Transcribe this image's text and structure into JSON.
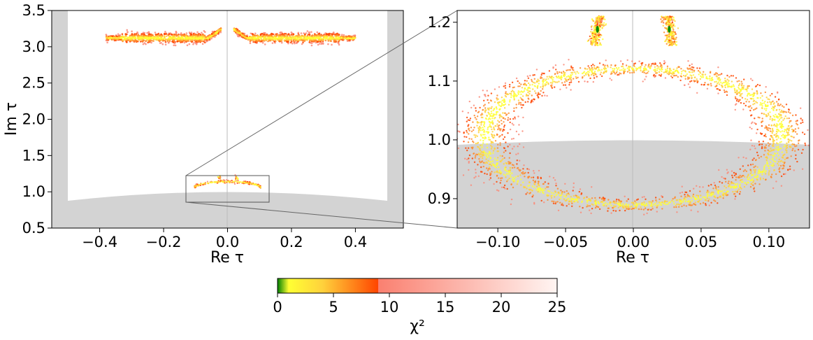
{
  "chart_data": [
    {
      "type": "scatter",
      "panel": "left",
      "xlabel": "Re τ",
      "ylabel": "Im τ",
      "xlim": [
        -0.55,
        0.55
      ],
      "ylim": [
        0.5,
        3.5
      ],
      "xticks": [
        -0.4,
        -0.2,
        0.0,
        0.2,
        0.4
      ],
      "xtick_labels": [
        "−0.4",
        "−0.2",
        "0.0",
        "0.2",
        "0.4"
      ],
      "yticks": [
        0.5,
        1.0,
        1.5,
        2.0,
        2.5,
        3.0,
        3.5
      ],
      "ytick_labels": [
        "0.5",
        "1.0",
        "1.5",
        "2.0",
        "2.5",
        "3.0",
        "3.5"
      ],
      "regions": [
        {
          "x_from": -0.55,
          "x_to": -0.5,
          "y_from": 0.5,
          "y_to": 3.5
        },
        {
          "x_from": 0.5,
          "x_to": 0.55,
          "y_from": 0.5,
          "y_to": 3.5
        },
        {
          "below_curve": "|τ| = 1",
          "x_from": -0.5,
          "x_to": 0.5
        }
      ],
      "vertical_line_x": 0.0,
      "inset_box": {
        "x": [
          -0.13,
          0.13
        ],
        "y": [
          0.85,
          1.22
        ]
      },
      "clusters": [
        {
          "x_from": -0.38,
          "x_to": -0.02,
          "y_center": 3.12,
          "y_spread": 0.07
        },
        {
          "x_from": 0.02,
          "x_to": 0.4,
          "y_center": 3.12,
          "y_spread": 0.07
        },
        {
          "x_from": -0.11,
          "x_to": 0.11,
          "shape": "ellipse",
          "y_center": 1.05
        }
      ]
    },
    {
      "type": "scatter",
      "panel": "right",
      "xlabel": "Re τ",
      "ylabel": "",
      "xlim": [
        -0.13,
        0.13
      ],
      "ylim": [
        0.85,
        1.22
      ],
      "xticks": [
        -0.1,
        -0.05,
        0.0,
        0.05,
        0.1
      ],
      "xtick_labels": [
        "−0.10",
        "−0.05",
        "0.00",
        "0.05",
        "0.10"
      ],
      "yticks": [
        0.9,
        1.0,
        1.1,
        1.2
      ],
      "ytick_labels": [
        "0.9",
        "1.0",
        "1.1",
        "1.2"
      ],
      "regions": [
        {
          "below_curve": "|τ| = 1"
        }
      ],
      "vertical_line_x": 0.0,
      "ellipse": {
        "center_x": 0.0,
        "center_y": 1.005,
        "radius_x": 0.11,
        "radius_y": 0.116
      },
      "best_fit_points": [
        {
          "x": -0.0265,
          "y": 1.188
        },
        {
          "x": 0.0265,
          "y": 1.188
        }
      ]
    }
  ],
  "colorbar": {
    "label": "χ²",
    "range": [
      0,
      25
    ],
    "ticks": [
      0,
      5,
      10,
      15,
      20,
      25
    ],
    "tick_labels": [
      "0",
      "5",
      "10",
      "15",
      "20",
      "25"
    ],
    "stops": [
      {
        "value": 0,
        "color": "#008000"
      },
      {
        "value": 1,
        "color": "#ffff33"
      },
      {
        "value": 4,
        "color": "#ffd23c"
      },
      {
        "value": 9,
        "color": "#ff4500"
      },
      {
        "value": 9.01,
        "color": "#fa8070"
      },
      {
        "value": 25,
        "color": "#fff5f2"
      }
    ]
  },
  "colors": {
    "excluded_region": "#d3d3d3",
    "axis_line": "#000000",
    "zero_line": "#bbbbbb"
  }
}
